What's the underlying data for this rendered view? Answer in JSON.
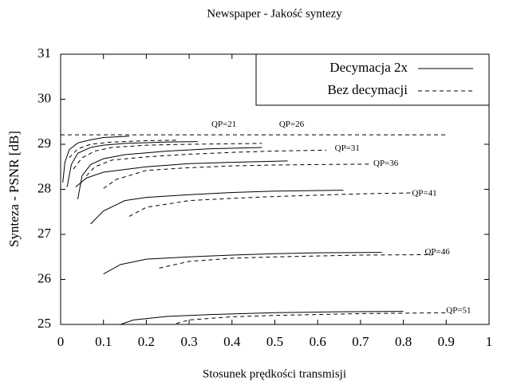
{
  "chart_data": {
    "type": "line",
    "title": "Newspaper - Jakość syntezy",
    "x_label": "Stosunek prędkości transmisji",
    "y_label": "Synteza - PSNR [dB]",
    "xlim": [
      0,
      1
    ],
    "xticks": [
      0,
      0.1,
      0.2,
      0.3,
      0.4,
      0.5,
      0.6,
      0.7,
      0.8,
      0.9,
      1
    ],
    "ylim": [
      25,
      31
    ],
    "yticks": [
      25,
      26,
      27,
      28,
      29,
      30,
      31
    ],
    "legend": "upper right",
    "series": [
      {
        "name": "Decymacja 2x",
        "color": "#000000",
        "dashed": false,
        "lines": [
          {
            "x": [
              0.005,
              0.01,
              0.02,
              0.04,
              0.07,
              0.1,
              0.16
            ],
            "values": [
              28.15,
              28.6,
              28.88,
              29.03,
              29.1,
              29.15,
              29.18
            ]
          },
          {
            "x": [
              0.015,
              0.025,
              0.04,
              0.07,
              0.1,
              0.15,
              0.25,
              0.32
            ],
            "values": [
              28.05,
              28.55,
              28.8,
              28.93,
              28.98,
              29.02,
              29.05,
              29.06
            ]
          },
          {
            "x": [
              0.04,
              0.05,
              0.07,
              0.1,
              0.15,
              0.25,
              0.35,
              0.47
            ],
            "values": [
              27.78,
              28.3,
              28.55,
              28.68,
              28.77,
              28.85,
              28.9,
              28.93
            ]
          },
          {
            "x": [
              0.035,
              0.06,
              0.1,
              0.2,
              0.3,
              0.4,
              0.53
            ],
            "values": [
              28.05,
              28.25,
              28.38,
              28.5,
              28.57,
              28.6,
              28.63
            ]
          },
          {
            "x": [
              0.07,
              0.1,
              0.15,
              0.2,
              0.3,
              0.4,
              0.5,
              0.66
            ],
            "values": [
              27.23,
              27.52,
              27.75,
              27.82,
              27.88,
              27.93,
              27.96,
              27.98
            ]
          },
          {
            "x": [
              0.1,
              0.14,
              0.2,
              0.3,
              0.4,
              0.5,
              0.6,
              0.75
            ],
            "values": [
              26.12,
              26.33,
              26.45,
              26.5,
              26.54,
              26.57,
              26.59,
              26.6
            ]
          },
          {
            "x": [
              0.14,
              0.17,
              0.25,
              0.35,
              0.5,
              0.65,
              0.8
            ],
            "values": [
              25.0,
              25.1,
              25.18,
              25.22,
              25.26,
              25.28,
              25.29
            ]
          }
        ]
      },
      {
        "name": "Bez decymacji",
        "color": "#000000",
        "dashed": true,
        "lines": [
          {
            "x": [
              0,
              0.9
            ],
            "values": [
              29.21,
              29.21
            ]
          },
          {
            "x": [
              0.02,
              0.04,
              0.07,
              0.12,
              0.2,
              0.27
            ],
            "values": [
              28.7,
              28.9,
              29.0,
              29.05,
              29.08,
              29.09
            ]
          },
          {
            "x": [
              0.03,
              0.05,
              0.08,
              0.12,
              0.2,
              0.3,
              0.47
            ],
            "values": [
              28.45,
              28.7,
              28.85,
              28.93,
              28.98,
              29.0,
              29.02
            ]
          },
          {
            "x": [
              0.06,
              0.08,
              0.12,
              0.2,
              0.3,
              0.4,
              0.5,
              0.62
            ],
            "values": [
              28.3,
              28.5,
              28.65,
              28.72,
              28.78,
              28.82,
              28.85,
              28.87
            ]
          },
          {
            "x": [
              0.1,
              0.13,
              0.2,
              0.3,
              0.4,
              0.5,
              0.6,
              0.72
            ],
            "values": [
              28.02,
              28.22,
              28.42,
              28.48,
              28.52,
              28.54,
              28.55,
              28.56
            ]
          },
          {
            "x": [
              0.16,
              0.2,
              0.3,
              0.4,
              0.5,
              0.6,
              0.7,
              0.82
            ],
            "values": [
              27.4,
              27.6,
              27.75,
              27.8,
              27.84,
              27.87,
              27.9,
              27.92
            ]
          },
          {
            "x": [
              0.23,
              0.3,
              0.4,
              0.5,
              0.6,
              0.7,
              0.87
            ],
            "values": [
              26.25,
              26.4,
              26.47,
              26.5,
              26.52,
              26.54,
              26.55
            ]
          },
          {
            "x": [
              0.27,
              0.3,
              0.4,
              0.5,
              0.6,
              0.7,
              0.8,
              0.9
            ],
            "values": [
              25.02,
              25.1,
              25.17,
              25.2,
              25.22,
              25.24,
              25.25,
              25.26
            ]
          }
        ]
      }
    ],
    "annotations": [
      {
        "text": "QP=21",
        "x": 0.352,
        "y": 29.43
      },
      {
        "text": "QP=26",
        "x": 0.51,
        "y": 29.43
      },
      {
        "text": "QP=31",
        "x": 0.64,
        "y": 28.9
      },
      {
        "text": "QP=36",
        "x": 0.73,
        "y": 28.57
      },
      {
        "text": "QP=41",
        "x": 0.82,
        "y": 27.9
      },
      {
        "text": "QP=46",
        "x": 0.85,
        "y": 26.6
      },
      {
        "text": "QP=51",
        "x": 0.9,
        "y": 25.3
      }
    ]
  }
}
